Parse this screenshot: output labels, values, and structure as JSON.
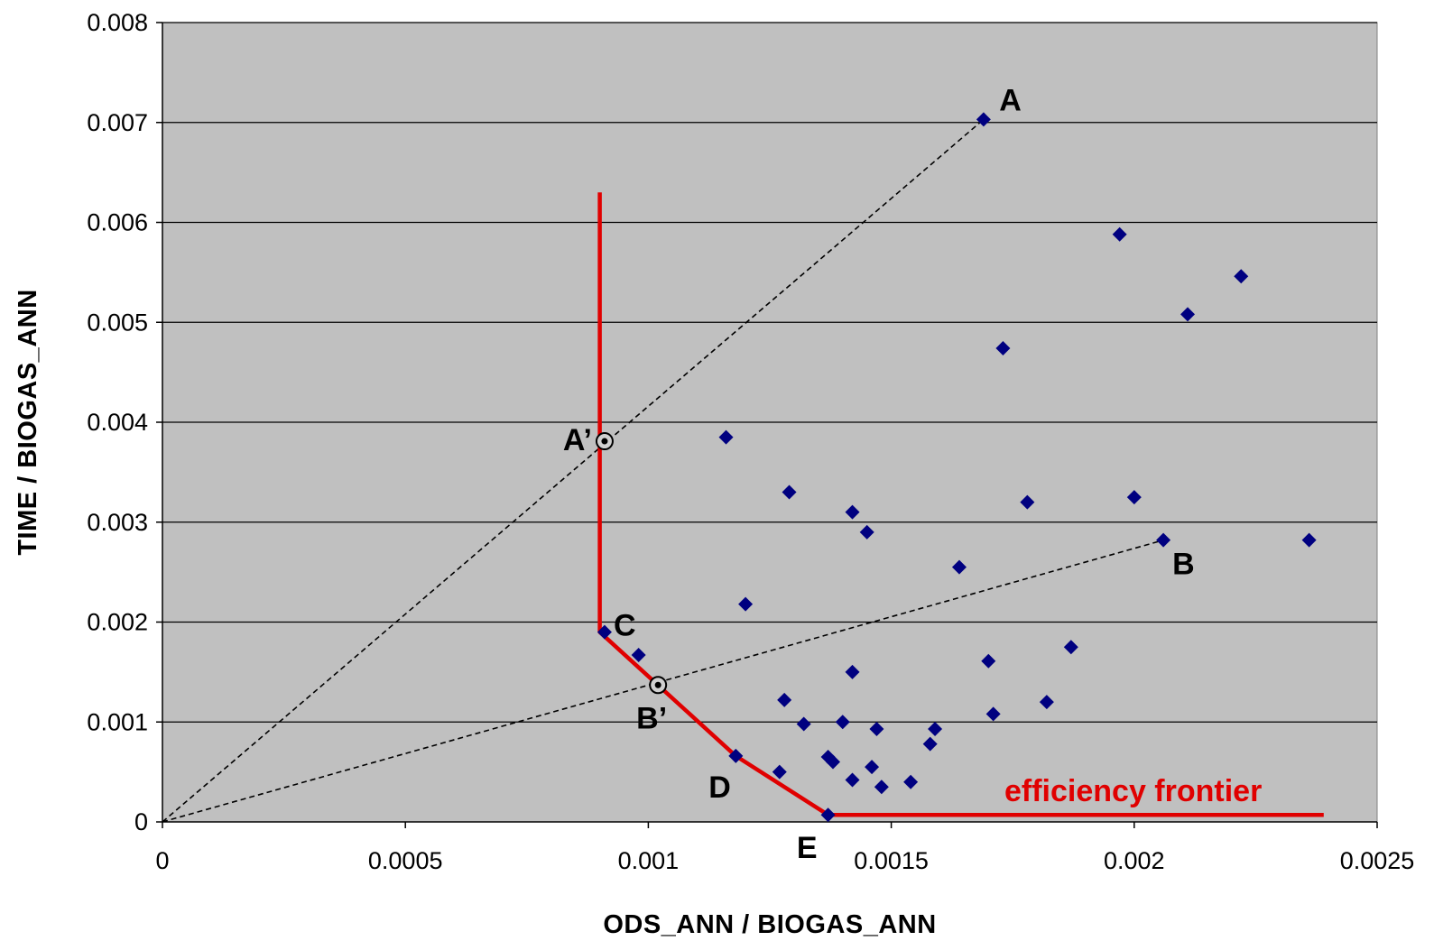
{
  "chart_data": {
    "type": "scatter",
    "title": "",
    "xlabel": "ODS_ANN / BIOGAS_ANN",
    "ylabel": "TIME / BIOGAS_ANN",
    "xlim": [
      0,
      0.0025
    ],
    "ylim": [
      0,
      0.008
    ],
    "x_ticks": [
      "0",
      "0.0005",
      "0.001",
      "0.0015",
      "0.002",
      "0.0025"
    ],
    "y_ticks": [
      "0",
      "0.001",
      "0.002",
      "0.003",
      "0.004",
      "0.005",
      "0.006",
      "0.007",
      "0.008"
    ],
    "grid": "horizontal",
    "legend": "none",
    "colors": {
      "plot_background": "#c0c0c0",
      "points": "#000080",
      "frontier": "#e00000",
      "grid": "#000000"
    },
    "series": [
      {
        "marker": "diamond",
        "points": [
          [
            0.00169,
            0.00703
          ],
          [
            0.00197,
            0.00588
          ],
          [
            0.00222,
            0.00546
          ],
          [
            0.00211,
            0.00508
          ],
          [
            0.00173,
            0.00474
          ],
          [
            0.00116,
            0.00385
          ],
          [
            0.00129,
            0.0033
          ],
          [
            0.00142,
            0.0031
          ],
          [
            0.00145,
            0.0029
          ],
          [
            0.00178,
            0.0032
          ],
          [
            0.002,
            0.00325
          ],
          [
            0.00206,
            0.00282
          ],
          [
            0.00236,
            0.00282
          ],
          [
            0.00164,
            0.00255
          ],
          [
            0.0012,
            0.00218
          ],
          [
            0.00091,
            0.0019
          ],
          [
            0.00098,
            0.00167
          ],
          [
            0.0017,
            0.00161
          ],
          [
            0.00187,
            0.00175
          ],
          [
            0.00142,
            0.0015
          ],
          [
            0.00128,
            0.00122
          ],
          [
            0.00182,
            0.0012
          ],
          [
            0.00171,
            0.00108
          ],
          [
            0.00132,
            0.00098
          ],
          [
            0.0014,
            0.001
          ],
          [
            0.00147,
            0.00093
          ],
          [
            0.00159,
            0.00093
          ],
          [
            0.00158,
            0.00078
          ],
          [
            0.00118,
            0.00066
          ],
          [
            0.00137,
            0.00065
          ],
          [
            0.00138,
            0.0006
          ],
          [
            0.00146,
            0.00055
          ],
          [
            0.00127,
            0.0005
          ],
          [
            0.00142,
            0.00042
          ],
          [
            0.00154,
            0.0004
          ],
          [
            0.00148,
            0.00035
          ],
          [
            0.00137,
            7e-05
          ]
        ]
      }
    ],
    "rays": [
      {
        "from": [
          0,
          0
        ],
        "to": [
          0.00169,
          0.00703
        ]
      },
      {
        "from": [
          0,
          0
        ],
        "to": [
          0.00206,
          0.00282
        ]
      }
    ],
    "frontier": {
      "label": "efficiency frontier",
      "points": [
        [
          0.0009,
          0.0063
        ],
        [
          0.0009,
          0.0019
        ],
        [
          0.00118,
          0.00066
        ],
        [
          0.00137,
          7e-05
        ],
        [
          0.00239,
          7e-05
        ]
      ]
    },
    "projected_points": [
      {
        "label": "A’",
        "x": 0.00091,
        "y": 0.00381
      },
      {
        "label": "B’",
        "x": 0.00102,
        "y": 0.00137
      }
    ],
    "annotations": [
      {
        "text": "A",
        "x": 0.0017,
        "y": 0.00703
      },
      {
        "text": "B",
        "x": 0.00206,
        "y": 0.00282
      },
      {
        "text": "C",
        "x": 0.00091,
        "y": 0.0019
      },
      {
        "text": "D",
        "x": 0.00118,
        "y": 0.00066
      },
      {
        "text": "E",
        "x": 0.00137,
        "y": 7e-05
      },
      {
        "text": "A’",
        "x": 0.00091,
        "y": 0.00381
      },
      {
        "text": "B’",
        "x": 0.00102,
        "y": 0.00137
      }
    ]
  }
}
